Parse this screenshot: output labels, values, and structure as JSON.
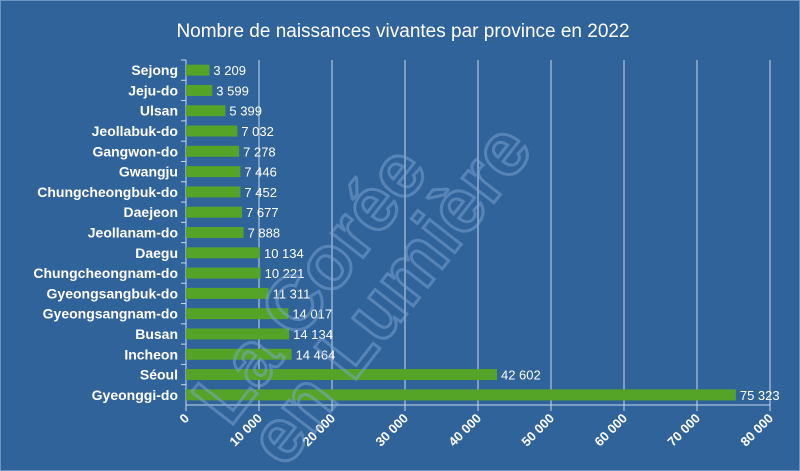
{
  "chart_data": {
    "type": "bar",
    "orientation": "horizontal",
    "title": "Nombre de naissances vivantes par province en 2022",
    "xlabel": "",
    "ylabel": "",
    "xlim": [
      0,
      80000
    ],
    "grid": true,
    "x_ticks": [
      "0",
      "10 000",
      "20 000",
      "30 000",
      "40 000",
      "50 000",
      "60 000",
      "70 000",
      "80 000"
    ],
    "categories": [
      "Sejong",
      "Jeju-do",
      "Ulsan",
      "Jeollabuk-do",
      "Gangwon-do",
      "Gwangju",
      "Chungcheongbuk-do",
      "Daejeon",
      "Jeollanam-do",
      "Daegu",
      "Chungcheongnam-do",
      "Gyeongsangbuk-do",
      "Gyeongsangnam-do",
      "Busan",
      "Incheon",
      "Séoul",
      "Gyeonggi-do"
    ],
    "values": [
      3209,
      3599,
      5399,
      7032,
      7278,
      7446,
      7452,
      7677,
      7888,
      10134,
      10221,
      11311,
      14017,
      14134,
      14464,
      42602,
      75323
    ],
    "value_labels": [
      "3 209",
      "3 599",
      "5 399",
      "7 032",
      "7 278",
      "7 446",
      "7 452",
      "7 677",
      "7 888",
      "10 134",
      "10 221",
      "11 311",
      "14 017",
      "14 134",
      "14 464",
      "42 602",
      "75 323"
    ],
    "bar_color": "#55a428",
    "watermark": "La Corée en Lumière"
  },
  "colors": {
    "background": "#30639a",
    "grid": "#c9d8ea",
    "text": "#ffffff"
  }
}
